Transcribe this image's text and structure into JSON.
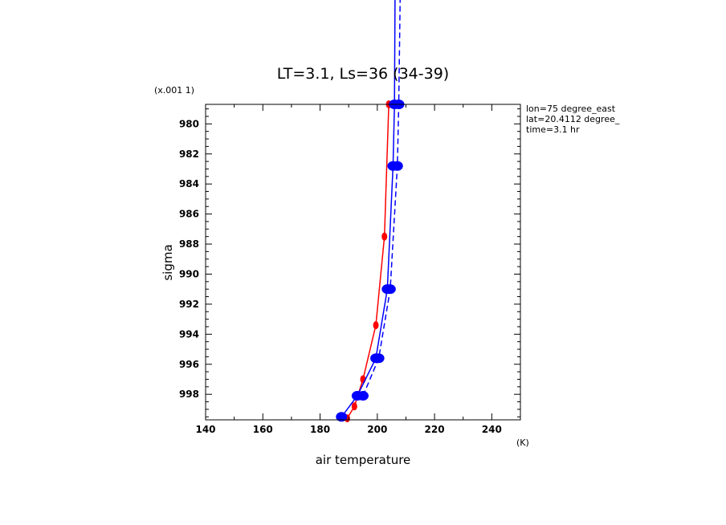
{
  "chart_data": {
    "type": "line",
    "title": "LT=3.1, Ls=36 (34-39)",
    "xlabel": "air temperature",
    "xunit": "(K)",
    "ylabel": "sigma",
    "yscale_note": "(x.001 1)",
    "xlim": [
      140,
      250
    ],
    "ylim": [
      999.7,
      978.7
    ],
    "x_ticks": [
      140,
      160,
      180,
      200,
      220,
      240
    ],
    "y_ticks": [
      980,
      982,
      984,
      986,
      988,
      990,
      992,
      994,
      996,
      998
    ],
    "info_lines": [
      "lon=75 degree_east",
      "lat=20.4112 degree_",
      "time=3.1 hr"
    ],
    "colors": {
      "red": "#ff0000",
      "blue": "#0000ff"
    },
    "series": [
      {
        "style": "red-solid",
        "color": "#ff0000",
        "marker": "small",
        "points": [
          [
            189.5,
            999.6
          ],
          [
            192,
            998.8
          ],
          [
            195,
            997.0
          ],
          [
            199.5,
            993.4
          ],
          [
            202.5,
            987.5
          ],
          [
            204,
            978.7
          ]
        ]
      },
      {
        "style": "blue-solid",
        "color": "#0000ff",
        "marker": "large",
        "points": [
          [
            187.5,
            999.5
          ],
          [
            193,
            998.1
          ],
          [
            199.5,
            995.6
          ],
          [
            203.5,
            991.0
          ],
          [
            205.5,
            982.8
          ],
          [
            206,
            978.7
          ]
        ],
        "extends_above_top": [
          206.2,
          971.5
        ]
      },
      {
        "style": "blue-dashed",
        "color": "#0000ff",
        "marker": "large",
        "points": [
          [
            195,
            998.1
          ],
          [
            200.5,
            995.6
          ],
          [
            204.5,
            991.0
          ],
          [
            207,
            982.8
          ],
          [
            207.5,
            978.7
          ]
        ],
        "extends_above_top": [
          208,
          971.5
        ]
      }
    ]
  }
}
